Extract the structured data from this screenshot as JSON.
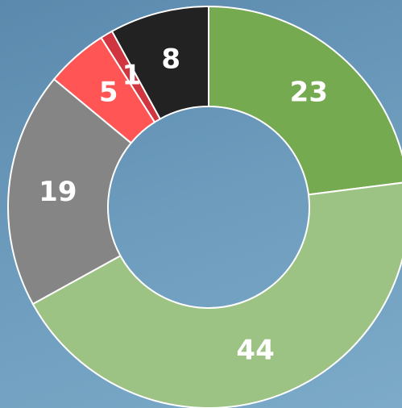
{
  "chart_data": {
    "type": "donut",
    "values": [
      23,
      44,
      19,
      5,
      1,
      8
    ],
    "colors": [
      "#75aa50",
      "#9dc384",
      "#858585",
      "#ff5555",
      "#d0363f",
      "#222222"
    ]
  }
}
